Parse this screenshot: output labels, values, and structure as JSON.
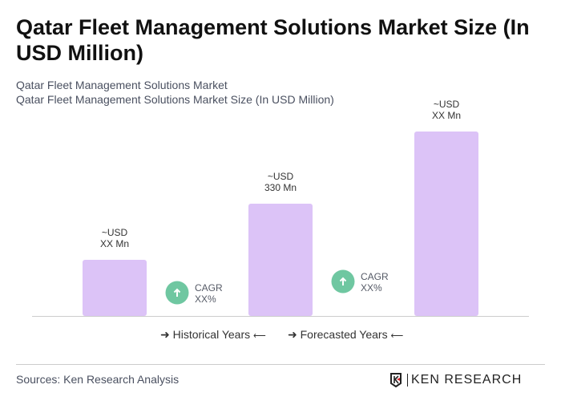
{
  "title": "Qatar Fleet Management Solutions Market Size (In USD Million)",
  "subtitle1": "Qatar Fleet Management Solutions Market",
  "subtitle2": "Qatar Fleet Management Solutions Market Size (In USD Million)",
  "chart_data": {
    "type": "bar",
    "categories": [
      "",
      "",
      ""
    ],
    "values": [
      165,
      330,
      542
    ],
    "data_labels": [
      [
        "~USD",
        "XX Mn"
      ],
      [
        "~USD",
        "330 Mn"
      ],
      [
        "~USD",
        "XX Mn"
      ]
    ],
    "cagr": [
      {
        "label": "CAGR",
        "value": "XX%"
      },
      {
        "label": "CAGR",
        "value": "XX%"
      }
    ],
    "bar_color": "#dcc3f7",
    "cagr_color": "#6fc7a1",
    "ylim": [
      0,
      560
    ],
    "grid": false
  },
  "legend": {
    "historical": "Historical Years",
    "forecasted": "Forecasted Years"
  },
  "source": "Sources: Ken Research Analysis",
  "logo": {
    "text": "KEN RESEARCH"
  }
}
